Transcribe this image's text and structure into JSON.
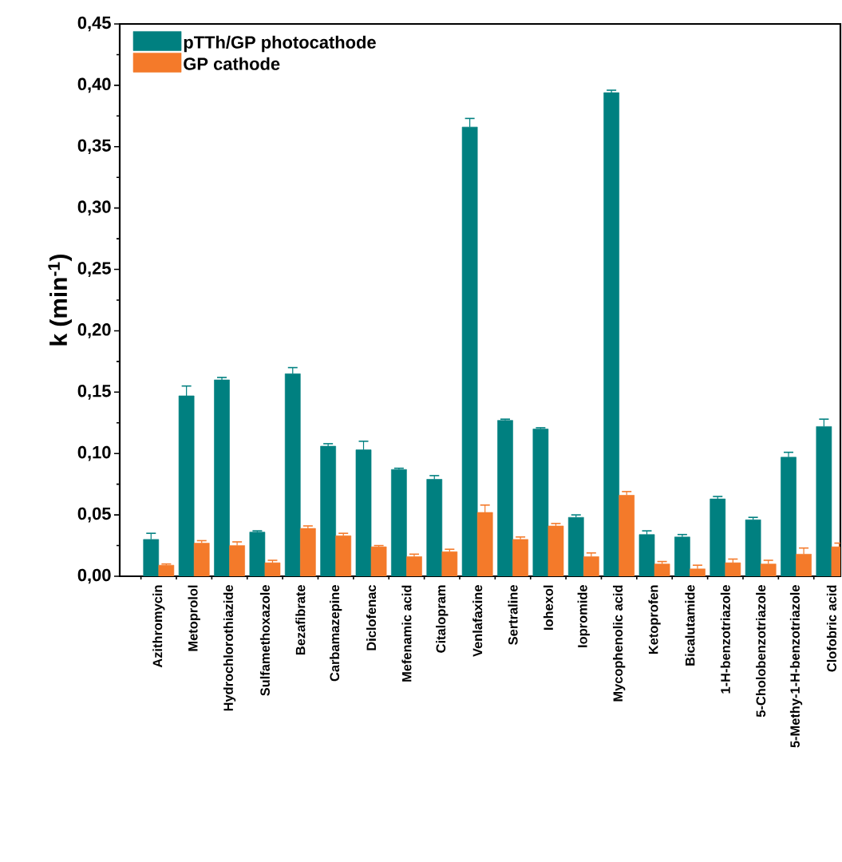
{
  "chart_data": {
    "type": "bar",
    "ylabel": "k (min$^{-1}$)",
    "categories": [
      "Azithromycin",
      "Metoprolol",
      "Hydrochlorothiazide",
      "Sulfamethoxazole",
      "Bezafibrate",
      "Carbamazepine",
      "Diclofenac",
      "Mefenamic acid",
      "Citalopram",
      "Venlafaxine",
      "Sertraline",
      "Iohexol",
      "Iopromide",
      "Mycophenolic acid",
      "Ketoprofen",
      "Bicalutamide",
      "1-H-benzotriazole",
      "5-Cholobenzotriazole",
      "5-Methy-1-H-benzotriazole",
      "Clofobric acid"
    ],
    "series": [
      {
        "name": "pTTh/GP photocathode",
        "color": "#008080",
        "values": [
          0.03,
          0.147,
          0.16,
          0.036,
          0.165,
          0.106,
          0.103,
          0.087,
          0.079,
          0.366,
          0.127,
          0.12,
          0.048,
          0.394,
          0.034,
          0.032,
          0.063,
          0.046,
          0.097,
          0.122
        ],
        "errors": [
          0.005,
          0.008,
          0.002,
          0.001,
          0.005,
          0.002,
          0.007,
          0.001,
          0.003,
          0.007,
          0.001,
          0.001,
          0.002,
          0.002,
          0.003,
          0.002,
          0.002,
          0.002,
          0.004,
          0.006
        ]
      },
      {
        "name": "GP cathode",
        "color": "#f47a2a",
        "values": [
          0.009,
          0.027,
          0.025,
          0.011,
          0.039,
          0.033,
          0.024,
          0.016,
          0.02,
          0.052,
          0.03,
          0.041,
          0.016,
          0.066,
          0.01,
          0.006,
          0.011,
          0.01,
          0.018,
          0.024
        ],
        "errors": [
          0.001,
          0.002,
          0.003,
          0.002,
          0.002,
          0.002,
          0.001,
          0.002,
          0.002,
          0.006,
          0.002,
          0.002,
          0.003,
          0.003,
          0.002,
          0.003,
          0.003,
          0.003,
          0.005,
          0.003
        ]
      }
    ],
    "ylim": [
      0,
      0.45
    ],
    "yticks": [
      {
        "value": 0,
        "label": "0,00"
      },
      {
        "value": 0.05,
        "label": "0,05"
      },
      {
        "value": 0.1,
        "label": "0,10"
      },
      {
        "value": 0.15,
        "label": "0,15"
      },
      {
        "value": 0.2,
        "label": "0,20"
      },
      {
        "value": 0.25,
        "label": "0,25"
      },
      {
        "value": 0.3,
        "label": "0,30"
      },
      {
        "value": 0.35,
        "label": "0,35"
      },
      {
        "value": 0.4,
        "label": "0,40"
      },
      {
        "value": 0.45,
        "label": "0,45"
      }
    ],
    "legend": "top left",
    "grid": false
  }
}
